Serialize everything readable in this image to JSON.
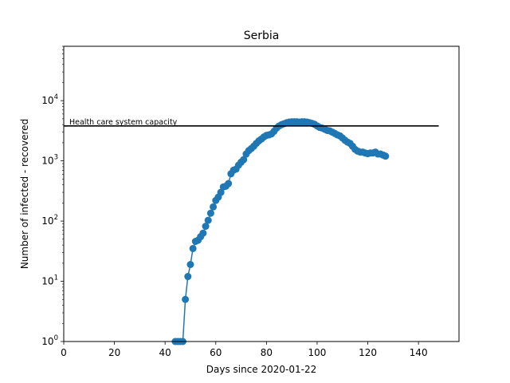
{
  "chart_data": {
    "type": "line",
    "title": "Serbia",
    "xlabel": "Days since 2020-01-22",
    "ylabel": "Number of infected - recovered",
    "xlim": [
      0,
      156
    ],
    "ylim": [
      1,
      80000
    ],
    "yscale": "log",
    "x_ticks": [
      0,
      20,
      40,
      60,
      80,
      100,
      120,
      140
    ],
    "x_tick_labels": [
      "0",
      "20",
      "40",
      "60",
      "80",
      "100",
      "120",
      "140"
    ],
    "y_ticks": [
      1,
      10,
      100,
      1000,
      10000
    ],
    "y_tick_labels": [
      {
        "base": "10",
        "exp": "0"
      },
      {
        "base": "10",
        "exp": "1"
      },
      {
        "base": "10",
        "exp": "2"
      },
      {
        "base": "10",
        "exp": "3"
      },
      {
        "base": "10",
        "exp": "4"
      }
    ],
    "grid": false,
    "series": [
      {
        "color": "#1f77b4",
        "marker": "circle",
        "x": [
          44,
          45,
          46,
          47,
          48,
          49,
          50,
          51,
          52,
          53,
          54,
          55,
          56,
          57,
          58,
          59,
          60,
          61,
          62,
          63,
          64,
          65,
          66,
          67,
          68,
          69,
          70,
          71,
          72,
          73,
          74,
          75,
          76,
          77,
          78,
          79,
          80,
          81,
          82,
          83,
          84,
          85,
          86,
          87,
          88,
          89,
          90,
          91,
          92,
          93,
          94,
          95,
          96,
          97,
          98,
          99,
          100,
          101,
          102,
          103,
          104,
          105,
          106,
          107,
          108,
          109,
          110,
          111,
          112,
          113,
          114,
          115,
          116,
          117,
          118,
          119,
          120,
          121,
          122,
          123,
          124,
          125,
          126,
          127
        ],
        "y": [
          1,
          1,
          1,
          1,
          5,
          12,
          19,
          35,
          46,
          48,
          55,
          63,
          82,
          103,
          135,
          172,
          220,
          250,
          300,
          370,
          380,
          420,
          610,
          700,
          730,
          850,
          950,
          1050,
          1300,
          1480,
          1600,
          1750,
          1950,
          2150,
          2300,
          2500,
          2650,
          2700,
          2800,
          3100,
          3500,
          3800,
          4000,
          4150,
          4300,
          4400,
          4450,
          4450,
          4450,
          4400,
          4450,
          4450,
          4400,
          4300,
          4200,
          4050,
          3800,
          3600,
          3500,
          3350,
          3200,
          3150,
          3000,
          2850,
          2700,
          2600,
          2400,
          2200,
          2050,
          1950,
          1750,
          1550,
          1450,
          1400,
          1400,
          1350,
          1320,
          1350,
          1350,
          1400,
          1300,
          1300,
          1250,
          1200
        ]
      }
    ],
    "hline": {
      "y": 3800,
      "xmin": 0,
      "xmax": 148,
      "color": "#000000",
      "label": "Health care system capacity"
    }
  }
}
